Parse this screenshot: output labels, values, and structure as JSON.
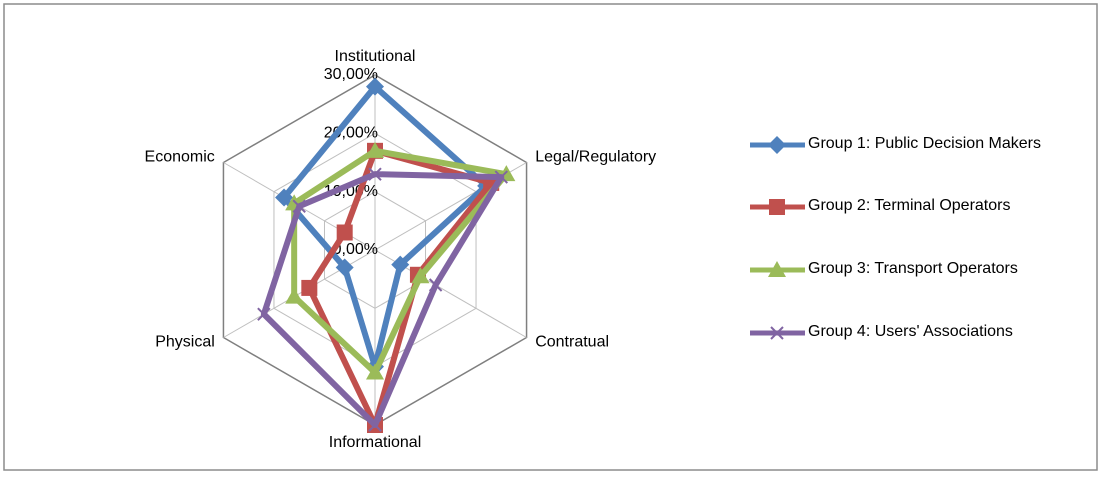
{
  "chart_data": {
    "type": "radar",
    "categories": [
      "Institutional",
      "Legal/Regulatory",
      "Contratual",
      "Informational",
      "Physical",
      "Economic"
    ],
    "ylim": [
      0,
      30
    ],
    "yticks": [
      {
        "value": 0,
        "label": "0,00%"
      },
      {
        "value": 10,
        "label": "10,00%"
      },
      {
        "value": 20,
        "label": "20,00%"
      },
      {
        "value": 30,
        "label": "30,00%"
      }
    ],
    "grid": true,
    "legend": "right",
    "series": [
      {
        "name": "Group 1: Public Decision Makers",
        "color": "#4f81bd",
        "marker": "diamond",
        "values": [
          28,
          22,
          5,
          20,
          6,
          18
        ]
      },
      {
        "name": "Group 2: Terminal Operators",
        "color": "#c0504d",
        "marker": "square",
        "values": [
          17,
          23,
          8.5,
          30,
          13,
          6
        ]
      },
      {
        "name": "Group 3: Transport Operators",
        "color": "#9bbb59",
        "marker": "triangle",
        "values": [
          17,
          26,
          9,
          21,
          16,
          16
        ]
      },
      {
        "name": "Group 4: Users' Associations",
        "color": "#8064a2",
        "marker": "x",
        "values": [
          13,
          25,
          12,
          30,
          22,
          15
        ]
      }
    ]
  }
}
